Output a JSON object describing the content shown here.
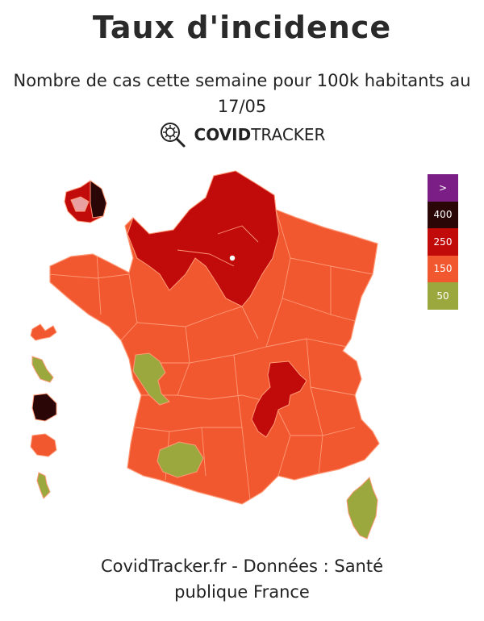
{
  "title": "Taux d'incidence",
  "subtitle_line1": "Nombre de cas cette semaine pour 100k habitants au",
  "subtitle_line2": "17/05",
  "brand": {
    "bold": "COVID",
    "regular": "TRACKER",
    "logo_icon": "magnifier-virus-icon"
  },
  "legend": [
    {
      "label": ">",
      "color": "#7b1e86",
      "text_color": "#ffffff"
    },
    {
      "label": "400",
      "color": "#2b0606",
      "text_color": "#ffffff"
    },
    {
      "label": "250",
      "color": "#c10a0a",
      "text_color": "#ffffff"
    },
    {
      "label": "150",
      "color": "#f2582f",
      "text_color": "#ffffff"
    },
    {
      "label": "50",
      "color": "#9aa83d",
      "text_color": "#ffffff"
    }
  ],
  "colors": {
    "base": "#f2582f",
    "high": "#c10a0a",
    "very_high": "#2b0606",
    "low": "#9aa83d",
    "border": "#ff9a78"
  },
  "footer_line1": "CovidTracker.fr - Données : Santé",
  "footer_line2": "publique France"
}
